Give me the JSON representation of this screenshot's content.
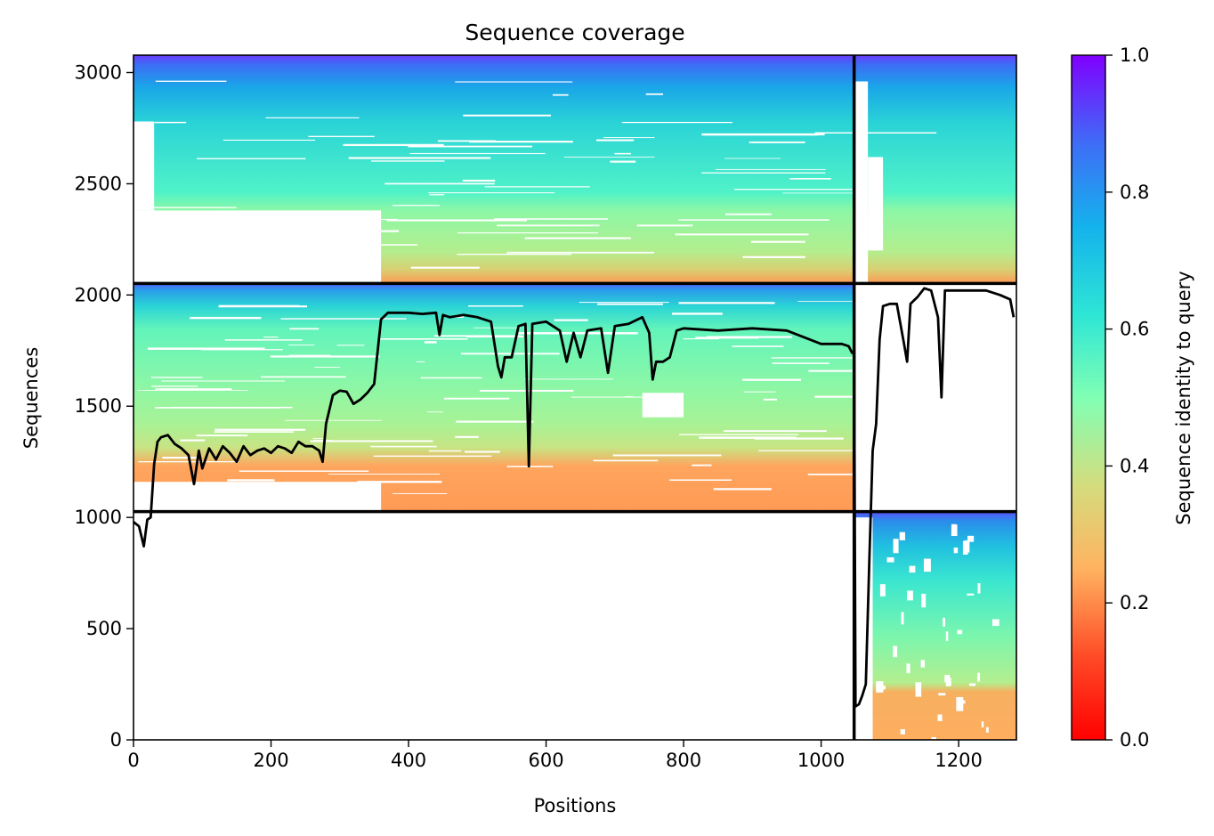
{
  "chart_data": {
    "type": "heatmap",
    "title": "Sequence coverage",
    "xlabel": "Positions",
    "ylabel": "Sequences",
    "xlim": [
      0,
      1284
    ],
    "ylim": [
      0,
      3078
    ],
    "xticks": [
      0,
      200,
      400,
      600,
      800,
      1000,
      1200
    ],
    "yticks": [
      0,
      500,
      1000,
      1500,
      2000,
      2500,
      3000
    ],
    "colorbar": {
      "label": "Sequence identity to query",
      "range": [
        0,
        1
      ],
      "colormap": "rainbow",
      "ticks": [
        "0.0",
        "0.2",
        "0.4",
        "0.6",
        "0.8",
        "1.0"
      ]
    },
    "chain_boundaries": {
      "x": [
        1048
      ],
      "y": [
        1026,
        2052
      ]
    },
    "blocks": [
      {
        "name": "block-top-left",
        "x": [
          0,
          1048
        ],
        "y": [
          2052,
          3078
        ],
        "identity_top": 0.95,
        "identity_bottom": 0.25
      },
      {
        "name": "block-top-right",
        "x": [
          1048,
          1284
        ],
        "y": [
          2052,
          3078
        ],
        "identity_top": 0.95,
        "identity_bottom": 0.25
      },
      {
        "name": "block-middle-left",
        "x": [
          0,
          1048
        ],
        "y": [
          1026,
          2052
        ],
        "identity_top": 0.9,
        "identity_bottom": 0.25
      },
      {
        "name": "block-bottom-right",
        "x": [
          1048,
          1284
        ],
        "y": [
          0,
          1026
        ],
        "identity_top": 0.9,
        "identity_bottom": 0.28
      }
    ],
    "coverage_line": {
      "x": [
        0,
        8,
        15,
        20,
        25,
        30,
        35,
        40,
        50,
        60,
        70,
        80,
        88,
        95,
        100,
        110,
        120,
        130,
        140,
        150,
        160,
        170,
        180,
        190,
        200,
        210,
        220,
        230,
        240,
        250,
        260,
        270,
        275,
        280,
        290,
        300,
        310,
        320,
        330,
        340,
        350,
        360,
        370,
        380,
        400,
        420,
        440,
        445,
        450,
        460,
        480,
        500,
        520,
        530,
        535,
        540,
        550,
        560,
        570,
        575,
        580,
        600,
        610,
        620,
        630,
        640,
        650,
        660,
        680,
        690,
        700,
        720,
        740,
        750,
        755,
        760,
        770,
        780,
        790,
        800,
        850,
        900,
        950,
        1000,
        1020,
        1030,
        1040,
        1045,
        1048,
        1050,
        1055,
        1060,
        1065,
        1070,
        1075,
        1080,
        1085,
        1090,
        1100,
        1110,
        1120,
        1125,
        1130,
        1140,
        1150,
        1160,
        1170,
        1175,
        1180,
        1190,
        1200,
        1220,
        1240,
        1260,
        1275,
        1280
      ],
      "y": [
        980,
        960,
        870,
        990,
        1000,
        1240,
        1340,
        1360,
        1370,
        1330,
        1310,
        1280,
        1150,
        1300,
        1220,
        1310,
        1260,
        1320,
        1290,
        1250,
        1320,
        1280,
        1300,
        1310,
        1290,
        1320,
        1310,
        1290,
        1340,
        1320,
        1320,
        1300,
        1250,
        1420,
        1550,
        1570,
        1565,
        1510,
        1530,
        1560,
        1600,
        1890,
        1920,
        1920,
        1920,
        1915,
        1920,
        1820,
        1910,
        1900,
        1910,
        1900,
        1880,
        1680,
        1630,
        1720,
        1720,
        1860,
        1870,
        1230,
        1870,
        1880,
        1860,
        1840,
        1700,
        1830,
        1720,
        1840,
        1850,
        1650,
        1860,
        1870,
        1900,
        1830,
        1620,
        1700,
        1700,
        1720,
        1840,
        1850,
        1840,
        1850,
        1840,
        1780,
        1780,
        1780,
        1770,
        1740,
        1740,
        150,
        160,
        200,
        250,
        800,
        1300,
        1420,
        1800,
        1950,
        1960,
        1960,
        1790,
        1700,
        1960,
        1990,
        2030,
        2020,
        1900,
        1540,
        2020,
        2020,
        2020,
        2020,
        2020,
        2000,
        1980,
        1900
      ]
    }
  }
}
